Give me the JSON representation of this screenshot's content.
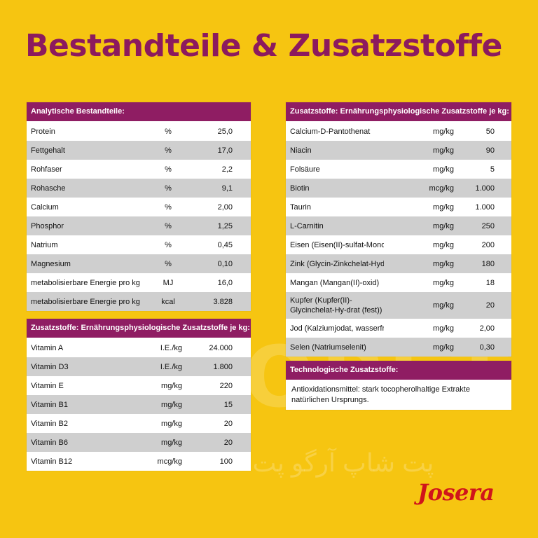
{
  "title": "Bestandteile & Zusatzstoffe",
  "analytical": {
    "header": "Analytische Bestandteile:",
    "rows": [
      {
        "label": "Protein",
        "unit": "%",
        "value": "25,0"
      },
      {
        "label": "Fettgehalt",
        "unit": "%",
        "value": "17,0"
      },
      {
        "label": "Rohfaser",
        "unit": "%",
        "value": "2,2"
      },
      {
        "label": "Rohasche",
        "unit": "%",
        "value": "9,1"
      },
      {
        "label": "Calcium",
        "unit": "%",
        "value": "2,00"
      },
      {
        "label": "Phosphor",
        "unit": "%",
        "value": "1,25"
      },
      {
        "label": "Natrium",
        "unit": "%",
        "value": "0,45"
      },
      {
        "label": "Magnesium",
        "unit": "%",
        "value": "0,10"
      },
      {
        "label": "metabolisierbare Energie pro kg",
        "unit": "MJ",
        "value": "16,0"
      },
      {
        "label": "metabolisierbare Energie pro kg",
        "unit": "kcal",
        "value": "3.828"
      }
    ]
  },
  "vitamins": {
    "header": "Zusatzstoffe: Ernährungsphysiologische Zusatzstoffe je kg:",
    "rows": [
      {
        "label": "Vitamin A",
        "unit": "I.E./kg",
        "value": "24.000"
      },
      {
        "label": "Vitamin D3",
        "unit": "I.E./kg",
        "value": "1.800"
      },
      {
        "label": "Vitamin E",
        "unit": "mg/kg",
        "value": "220"
      },
      {
        "label": "Vitamin B1",
        "unit": "mg/kg",
        "value": "15"
      },
      {
        "label": "Vitamin B2",
        "unit": "mg/kg",
        "value": "20"
      },
      {
        "label": "Vitamin B6",
        "unit": "mg/kg",
        "value": "20"
      },
      {
        "label": "Vitamin B12",
        "unit": "mcg/kg",
        "value": "100"
      }
    ]
  },
  "additives": {
    "header": "Zusatzstoffe: Ernährungsphysiologische Zusatzstoffe je kg:",
    "rows": [
      {
        "label": "Calcium-D-Pantothenat",
        "unit": "mg/kg",
        "value": "50"
      },
      {
        "label": "Niacin",
        "unit": "mg/kg",
        "value": "90"
      },
      {
        "label": "Folsäure",
        "unit": "mg/kg",
        "value": "5"
      },
      {
        "label": "Biotin",
        "unit": "mcg/kg",
        "value": "1.000"
      },
      {
        "label": "Taurin",
        "unit": "mg/kg",
        "value": "1.000"
      },
      {
        "label": "L-Carnitin",
        "unit": "mg/kg",
        "value": "250"
      },
      {
        "label": "Eisen (Eisen(II)-sulfat-Monohydrat)",
        "unit": "mg/kg",
        "value": "200"
      },
      {
        "label": "Zink (Glycin-Zinkchelat-Hydrat (fest))",
        "unit": "mg/kg",
        "value": "180"
      },
      {
        "label": "Mangan (Mangan(II)-oxid)",
        "unit": "mg/kg",
        "value": "18"
      },
      {
        "label": "Kupfer (Kupfer(II)-Glycinchelat-Hy-drat (fest))",
        "unit": "mg/kg",
        "value": "20"
      },
      {
        "label": "Jod (Kalziumjodat, wasserfrei)",
        "unit": "mg/kg",
        "value": "2,00"
      },
      {
        "label": "Selen (Natriumselenit)",
        "unit": "mg/kg",
        "value": "0,30"
      }
    ]
  },
  "technological": {
    "header": "Technologische Zusatzstoffe:",
    "text": "Antioxidationsmittel: stark tocopherolhaltige Extrakte natürlichen Ursprungs."
  },
  "watermark": "ARGOPET",
  "watermark_arabic": "پت شاپ آرگو پت",
  "logo": "Josera",
  "colors": {
    "background": "#f6c511",
    "accent": "#8f1d63",
    "title": "#8c1a5e",
    "logo": "#d0141b",
    "row_alt": "#cfcfcf"
  }
}
